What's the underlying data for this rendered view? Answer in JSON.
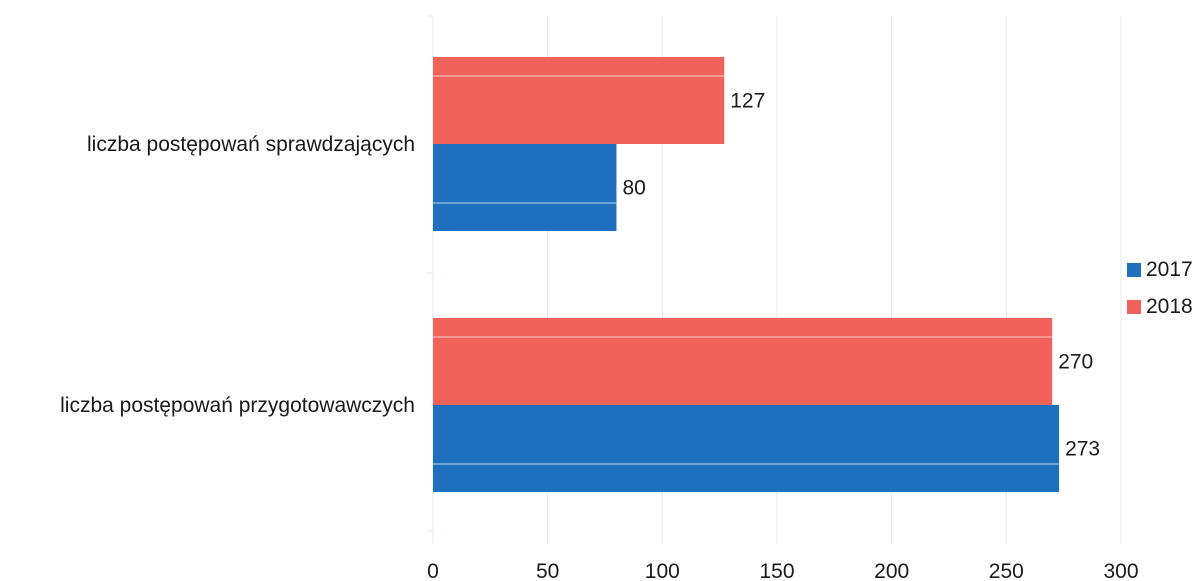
{
  "chart_data": {
    "type": "bar",
    "orientation": "horizontal",
    "categories": [
      "liczba postępowań sprawdzających",
      "liczba postępowań przygotowawczych"
    ],
    "series": [
      {
        "name": "2017",
        "values": [
          80,
          273
        ],
        "color": "#1f6fbf"
      },
      {
        "name": "2018",
        "values": [
          127,
          270
        ],
        "color": "#f0625a"
      }
    ],
    "x_ticks": [
      0,
      50,
      100,
      150,
      200,
      250,
      300
    ],
    "xlim": [
      0,
      300
    ],
    "grid": "vertical",
    "legend": "right",
    "title": "",
    "xlabel": "",
    "ylabel": ""
  }
}
